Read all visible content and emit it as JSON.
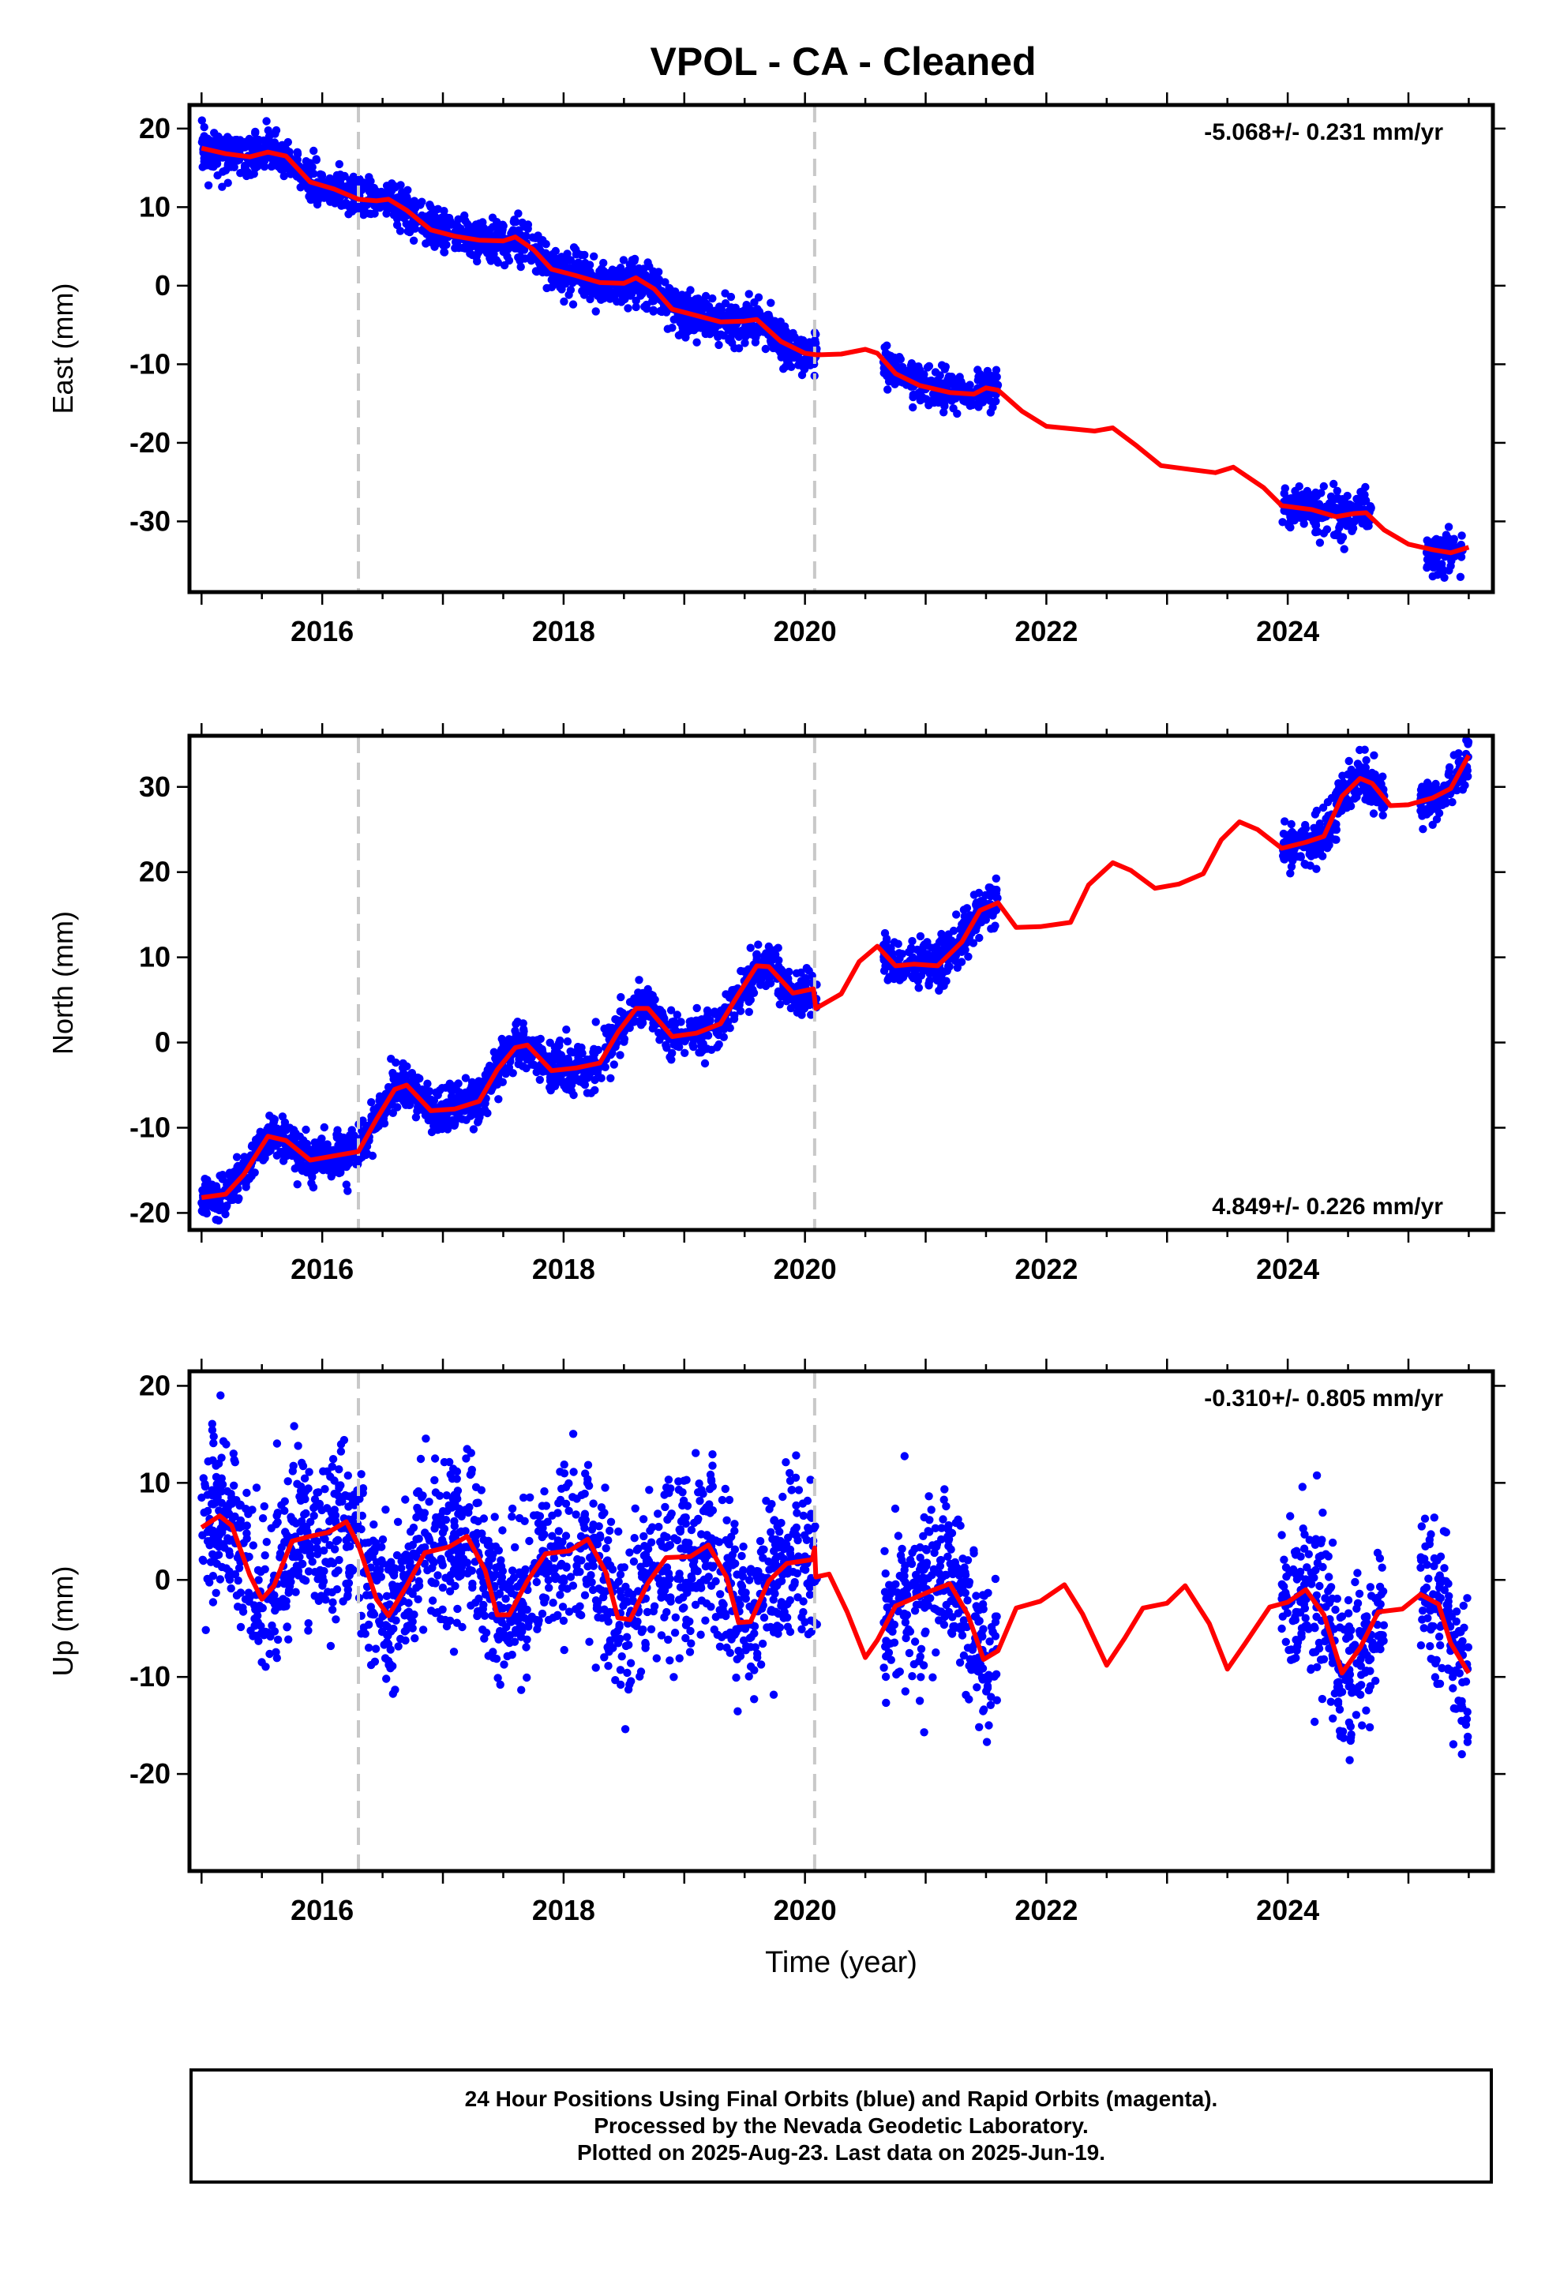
{
  "title": "VPOL  - CA - Cleaned",
  "colors": {
    "final_orbits": "#0000ff",
    "fit_line": "#ff0000",
    "break_lines": "#c8c8c8",
    "frame": "#000000"
  },
  "chart_data": [
    {
      "type": "scatter",
      "id": "east",
      "ylabel": "East (mm)",
      "xlabel": "",
      "xlim": [
        2014.9,
        2025.7
      ],
      "ylim": [
        -39,
        23
      ],
      "xticks": [
        2016,
        2018,
        2020,
        2022,
        2024
      ],
      "yticks": [
        -30,
        -20,
        -10,
        0,
        10,
        20
      ],
      "rate_label": "-5.068+/- 0.231 mm/yr",
      "rate_position": "top-right",
      "breaks": [
        2016.3,
        2020.08
      ],
      "data_segments": [
        [
          2015.0,
          2020.1
        ],
        [
          2020.65,
          2021.6
        ],
        [
          2023.95,
          2024.7
        ],
        [
          2025.15,
          2025.45
        ]
      ],
      "noise_mm": 1.3,
      "model_fit": [
        [
          2015.0,
          17.5
        ],
        [
          2015.2,
          16.8
        ],
        [
          2015.4,
          16.4
        ],
        [
          2015.55,
          17.0
        ],
        [
          2015.7,
          16.5
        ],
        [
          2015.9,
          13.2
        ],
        [
          2016.1,
          12.3
        ],
        [
          2016.3,
          11.0
        ],
        [
          2016.45,
          10.8
        ],
        [
          2016.55,
          11.0
        ],
        [
          2016.7,
          9.6
        ],
        [
          2016.9,
          7.1
        ],
        [
          2017.1,
          6.3
        ],
        [
          2017.3,
          5.8
        ],
        [
          2017.5,
          5.7
        ],
        [
          2017.6,
          6.2
        ],
        [
          2017.75,
          4.6
        ],
        [
          2017.9,
          2.1
        ],
        [
          2018.1,
          1.3
        ],
        [
          2018.3,
          0.4
        ],
        [
          2018.5,
          0.3
        ],
        [
          2018.6,
          1.0
        ],
        [
          2018.75,
          -0.4
        ],
        [
          2018.9,
          -3.0
        ],
        [
          2019.1,
          -3.8
        ],
        [
          2019.3,
          -4.6
        ],
        [
          2019.5,
          -4.5
        ],
        [
          2019.6,
          -4.3
        ],
        [
          2019.8,
          -7.1
        ],
        [
          2020.0,
          -8.6
        ],
        [
          2020.1,
          -8.8
        ],
        [
          2020.3,
          -8.7
        ],
        [
          2020.5,
          -8.1
        ],
        [
          2020.6,
          -8.6
        ],
        [
          2020.75,
          -11.2
        ],
        [
          2020.95,
          -12.7
        ],
        [
          2021.2,
          -13.6
        ],
        [
          2021.4,
          -13.8
        ],
        [
          2021.5,
          -13.0
        ],
        [
          2021.6,
          -13.3
        ],
        [
          2021.8,
          -16.0
        ],
        [
          2022.0,
          -17.9
        ],
        [
          2022.2,
          -18.2
        ],
        [
          2022.4,
          -18.5
        ],
        [
          2022.55,
          -18.1
        ],
        [
          2022.75,
          -20.4
        ],
        [
          2022.95,
          -22.9
        ],
        [
          2023.2,
          -23.4
        ],
        [
          2023.4,
          -23.8
        ],
        [
          2023.55,
          -23.1
        ],
        [
          2023.8,
          -25.7
        ],
        [
          2023.95,
          -28.0
        ],
        [
          2024.2,
          -28.5
        ],
        [
          2024.4,
          -29.4
        ],
        [
          2024.55,
          -29.0
        ],
        [
          2024.65,
          -28.9
        ],
        [
          2024.8,
          -31.1
        ],
        [
          2025.0,
          -32.9
        ],
        [
          2025.2,
          -33.6
        ],
        [
          2025.35,
          -34.0
        ],
        [
          2025.5,
          -33.3
        ]
      ]
    },
    {
      "type": "scatter",
      "id": "north",
      "ylabel": "North (mm)",
      "xlabel": "",
      "xlim": [
        2014.9,
        2025.7
      ],
      "ylim": [
        -22,
        36
      ],
      "xticks": [
        2016,
        2018,
        2020,
        2022,
        2024
      ],
      "yticks": [
        -20,
        -10,
        0,
        10,
        20,
        30
      ],
      "rate_label": "4.849+/- 0.226 mm/yr",
      "rate_position": "bottom-right",
      "breaks": [
        2016.3,
        2020.08
      ],
      "data_segments": [
        [
          2015.0,
          2020.1
        ],
        [
          2020.65,
          2021.6
        ],
        [
          2023.95,
          2024.8
        ],
        [
          2025.1,
          2025.5
        ]
      ],
      "noise_mm": 1.3,
      "model_fit": [
        [
          2015.0,
          -18.2
        ],
        [
          2015.2,
          -17.8
        ],
        [
          2015.35,
          -15.5
        ],
        [
          2015.55,
          -11.0
        ],
        [
          2015.7,
          -11.5
        ],
        [
          2015.9,
          -13.8
        ],
        [
          2016.1,
          -13.3
        ],
        [
          2016.3,
          -12.8
        ],
        [
          2016.45,
          -9.0
        ],
        [
          2016.6,
          -5.5
        ],
        [
          2016.7,
          -5.0
        ],
        [
          2016.9,
          -8.0
        ],
        [
          2017.1,
          -7.8
        ],
        [
          2017.3,
          -6.9
        ],
        [
          2017.45,
          -3.2
        ],
        [
          2017.6,
          -0.6
        ],
        [
          2017.7,
          -0.3
        ],
        [
          2017.9,
          -3.3
        ],
        [
          2018.1,
          -3.0
        ],
        [
          2018.3,
          -2.4
        ],
        [
          2018.45,
          1.2
        ],
        [
          2018.6,
          4.0
        ],
        [
          2018.7,
          4.0
        ],
        [
          2018.9,
          0.7
        ],
        [
          2019.1,
          1.1
        ],
        [
          2019.3,
          2.2
        ],
        [
          2019.45,
          5.7
        ],
        [
          2019.6,
          9.0
        ],
        [
          2019.7,
          8.9
        ],
        [
          2019.9,
          5.8
        ],
        [
          2020.07,
          6.3
        ],
        [
          2020.09,
          4.0
        ],
        [
          2020.3,
          5.7
        ],
        [
          2020.45,
          9.5
        ],
        [
          2020.6,
          11.3
        ],
        [
          2020.75,
          9.0
        ],
        [
          2020.9,
          9.2
        ],
        [
          2021.1,
          9.0
        ],
        [
          2021.3,
          11.8
        ],
        [
          2021.45,
          15.5
        ],
        [
          2021.6,
          16.4
        ],
        [
          2021.75,
          13.5
        ],
        [
          2021.95,
          13.6
        ],
        [
          2022.2,
          14.1
        ],
        [
          2022.35,
          18.5
        ],
        [
          2022.55,
          21.1
        ],
        [
          2022.7,
          20.2
        ],
        [
          2022.9,
          18.1
        ],
        [
          2023.1,
          18.6
        ],
        [
          2023.3,
          19.8
        ],
        [
          2023.45,
          23.8
        ],
        [
          2023.6,
          25.9
        ],
        [
          2023.75,
          25.0
        ],
        [
          2023.95,
          22.8
        ],
        [
          2024.15,
          23.5
        ],
        [
          2024.3,
          24.2
        ],
        [
          2024.45,
          28.9
        ],
        [
          2024.6,
          31.0
        ],
        [
          2024.7,
          30.4
        ],
        [
          2024.85,
          27.8
        ],
        [
          2025.0,
          27.9
        ],
        [
          2025.2,
          28.7
        ],
        [
          2025.35,
          29.8
        ],
        [
          2025.5,
          33.7
        ]
      ]
    },
    {
      "type": "scatter",
      "id": "up",
      "ylabel": "Up (mm)",
      "xlabel": "Time (year)",
      "xlim": [
        2014.9,
        2025.7
      ],
      "ylim": [
        -30,
        21.5
      ],
      "xticks": [
        2016,
        2018,
        2020,
        2022,
        2024
      ],
      "yticks": [
        -20,
        -10,
        0,
        10,
        20
      ],
      "rate_label": "-0.310+/- 0.805 mm/yr",
      "rate_position": "top-right",
      "breaks": [
        2016.3,
        2020.08
      ],
      "data_segments": [
        [
          2015.0,
          2020.1
        ],
        [
          2020.65,
          2021.6
        ],
        [
          2023.95,
          2024.8
        ],
        [
          2025.1,
          2025.5
        ]
      ],
      "noise_mm": 4.2,
      "model_fit": [
        [
          2015.0,
          5.4
        ],
        [
          2015.15,
          6.6
        ],
        [
          2015.25,
          5.6
        ],
        [
          2015.4,
          0.5
        ],
        [
          2015.5,
          -2.0
        ],
        [
          2015.6,
          -0.6
        ],
        [
          2015.75,
          4.0
        ],
        [
          2015.9,
          4.5
        ],
        [
          2016.05,
          4.9
        ],
        [
          2016.2,
          6.0
        ],
        [
          2016.3,
          3.6
        ],
        [
          2016.45,
          -2.0
        ],
        [
          2016.55,
          -3.7
        ],
        [
          2016.7,
          -0.6
        ],
        [
          2016.85,
          2.8
        ],
        [
          2017.05,
          3.4
        ],
        [
          2017.2,
          4.5
        ],
        [
          2017.35,
          1.0
        ],
        [
          2017.45,
          -3.6
        ],
        [
          2017.55,
          -3.6
        ],
        [
          2017.7,
          -0.1
        ],
        [
          2017.85,
          2.7
        ],
        [
          2018.05,
          3.0
        ],
        [
          2018.2,
          4.2
        ],
        [
          2018.35,
          0.8
        ],
        [
          2018.45,
          -3.9
        ],
        [
          2018.55,
          -4.1
        ],
        [
          2018.7,
          -0.3
        ],
        [
          2018.85,
          2.3
        ],
        [
          2019.05,
          2.4
        ],
        [
          2019.2,
          3.6
        ],
        [
          2019.35,
          0.3
        ],
        [
          2019.45,
          -4.4
        ],
        [
          2019.55,
          -4.3
        ],
        [
          2019.7,
          -0.1
        ],
        [
          2019.85,
          1.7
        ],
        [
          2020.06,
          2.1
        ],
        [
          2020.08,
          3.3
        ],
        [
          2020.09,
          0.3
        ],
        [
          2020.2,
          0.6
        ],
        [
          2020.35,
          -3.3
        ],
        [
          2020.5,
          -8.0
        ],
        [
          2020.6,
          -6.2
        ],
        [
          2020.75,
          -2.7
        ],
        [
          2020.9,
          -1.9
        ],
        [
          2021.05,
          -1.1
        ],
        [
          2021.2,
          -0.4
        ],
        [
          2021.35,
          -3.6
        ],
        [
          2021.48,
          -8.2
        ],
        [
          2021.6,
          -7.3
        ],
        [
          2021.75,
          -2.9
        ],
        [
          2021.95,
          -2.2
        ],
        [
          2022.15,
          -0.5
        ],
        [
          2022.3,
          -3.5
        ],
        [
          2022.5,
          -8.8
        ],
        [
          2022.65,
          -6.0
        ],
        [
          2022.8,
          -2.9
        ],
        [
          2023.0,
          -2.4
        ],
        [
          2023.15,
          -0.6
        ],
        [
          2023.35,
          -4.5
        ],
        [
          2023.5,
          -9.2
        ],
        [
          2023.65,
          -6.5
        ],
        [
          2023.85,
          -2.8
        ],
        [
          2024.0,
          -2.3
        ],
        [
          2024.15,
          -1.0
        ],
        [
          2024.3,
          -3.6
        ],
        [
          2024.45,
          -9.6
        ],
        [
          2024.6,
          -7.0
        ],
        [
          2024.75,
          -3.3
        ],
        [
          2024.95,
          -3.0
        ],
        [
          2025.1,
          -1.5
        ],
        [
          2025.25,
          -2.5
        ],
        [
          2025.35,
          -6.5
        ],
        [
          2025.5,
          -9.6
        ]
      ]
    }
  ],
  "footer": {
    "line1": "24 Hour Positions Using Final Orbits (blue) and Rapid Orbits (magenta).",
    "line2": "Processed by the Nevada Geodetic Laboratory.",
    "line3": "Plotted on 2025-Aug-23. Last data on 2025-Jun-19."
  }
}
